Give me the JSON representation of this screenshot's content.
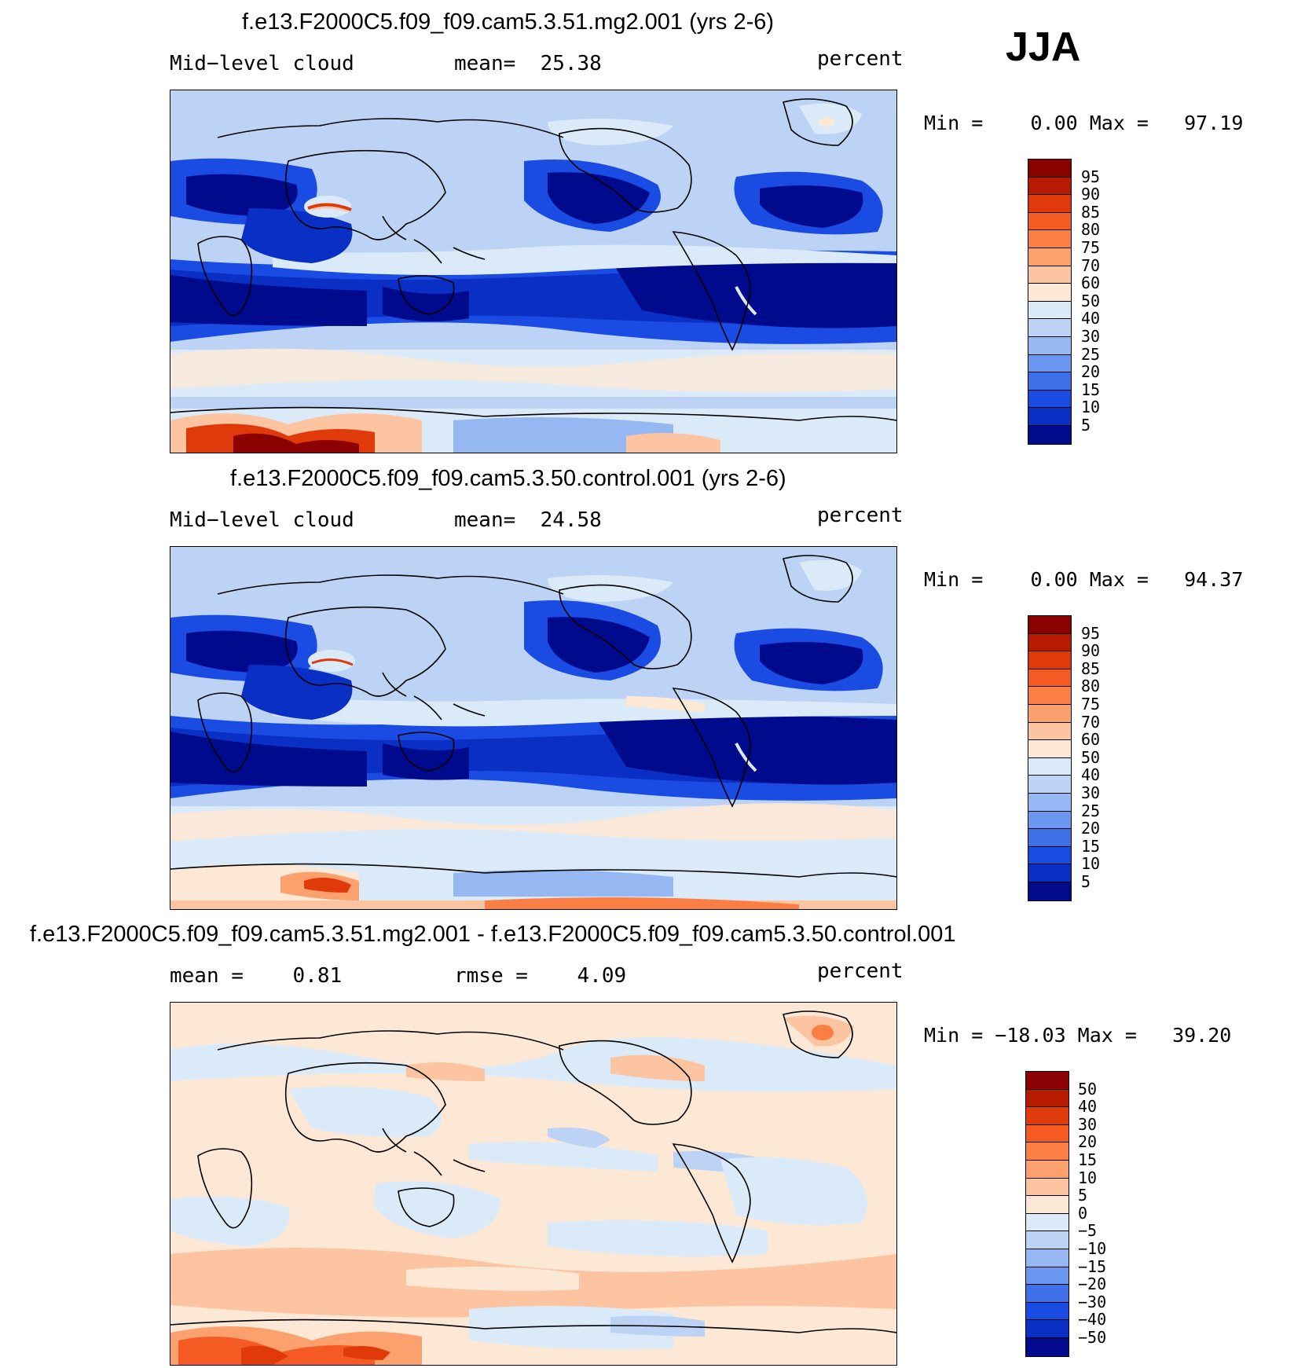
{
  "season": "JJA",
  "panels": [
    {
      "title": "f.e13.F2000C5.f09_f09.cam5.3.51.mg2.001 (yrs 2-6)",
      "left_label": "Mid−level cloud",
      "stat_label": "mean=  25.38",
      "units": "percent",
      "minmax": "Min =    0.00 Max =   97.19",
      "scale": "seq"
    },
    {
      "title": "f.e13.F2000C5.f09_f09.cam5.3.50.control.001 (yrs 2-6)",
      "left_label": "Mid−level cloud",
      "stat_label": "mean=  24.58",
      "units": "percent",
      "minmax": "Min =    0.00 Max =   94.37",
      "scale": "seq"
    },
    {
      "title": "f.e13.F2000C5.f09_f09.cam5.3.51.mg2.001 - f.e13.F2000C5.f09_f09.cam5.3.50.control.001",
      "left_label": "mean =    0.81",
      "stat_label": "rmse =    4.09",
      "units": "percent",
      "minmax": "Min = −18.03 Max =   39.20",
      "scale": "diff"
    }
  ],
  "colorbars": {
    "seq": {
      "labels": [
        "95",
        "90",
        "85",
        "80",
        "75",
        "70",
        "60",
        "50",
        "40",
        "30",
        "25",
        "20",
        "15",
        "10",
        "5"
      ],
      "colors": [
        "#8b0000",
        "#b81a00",
        "#e03a0a",
        "#f55a22",
        "#fb7f45",
        "#fca06d",
        "#fdc4a2",
        "#fde8d6",
        "#dbeaf8",
        "#bcd3f5",
        "#95b8f2",
        "#6a97ef",
        "#3f70ea",
        "#1a4be3",
        "#0a2fc4",
        "#000a8c"
      ]
    },
    "diff": {
      "labels": [
        "50",
        "40",
        "30",
        "20",
        "15",
        "10",
        "5",
        "0",
        "−5",
        "−10",
        "−15",
        "−20",
        "−30",
        "−40",
        "−50"
      ],
      "colors": [
        "#8b0000",
        "#b81a00",
        "#e03a0a",
        "#f55a22",
        "#fb7f45",
        "#fca06d",
        "#fdc4a2",
        "#fde8d6",
        "#dbeaf8",
        "#bcd3f5",
        "#95b8f2",
        "#6a97ef",
        "#3f70ea",
        "#1a4be3",
        "#0a2fc4",
        "#000a8c"
      ]
    }
  }
}
